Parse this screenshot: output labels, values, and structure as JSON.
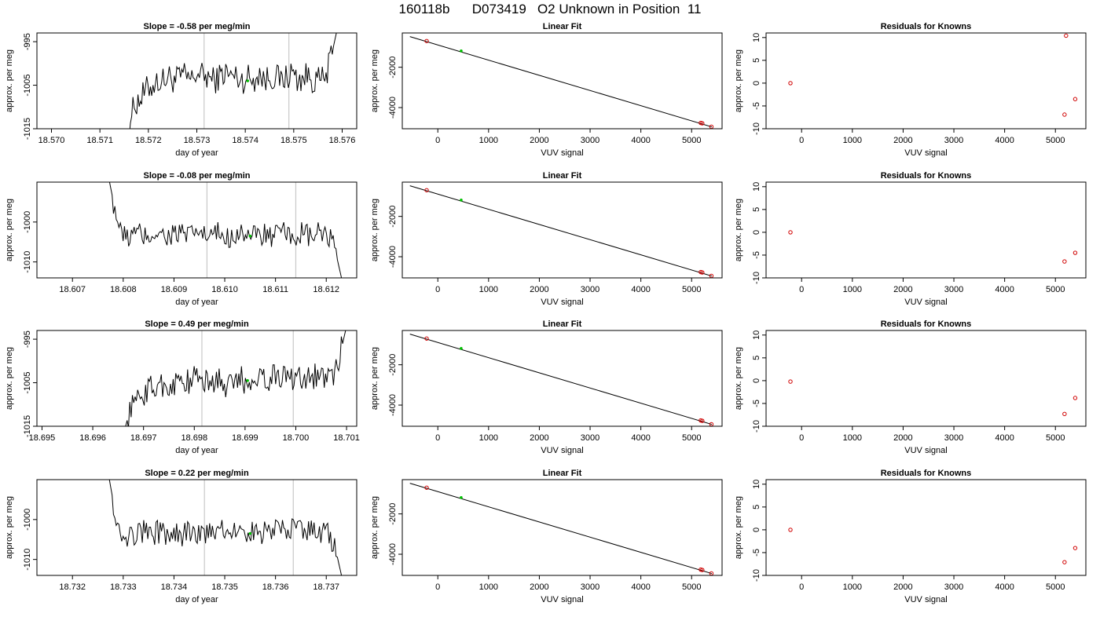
{
  "title": "160118b      D073419   O2 Unknown in Position  11",
  "colors": {
    "trace": "#000000",
    "known_point": "#d00000",
    "fit_point": "#00c000",
    "marker_line": "#c8c8c8"
  },
  "chart_data": [
    {
      "type": "line",
      "title": "Slope =  -0.58  per meg/min",
      "xlabel": "day of year",
      "ylabel": "approx. per meg",
      "xlim": [
        18.5697,
        18.5763
      ],
      "ylim": [
        -1015,
        -993
      ],
      "xticks": [
        "18.570",
        "18.571",
        "18.572",
        "18.573",
        "18.574",
        "18.575",
        "18.576"
      ],
      "xtick_values": [
        18.57,
        18.571,
        18.572,
        18.573,
        18.574,
        18.575,
        18.576
      ],
      "yticks": [
        "-1015",
        "-1005",
        "-995"
      ],
      "ytick_values": [
        -1015,
        -1005,
        -995
      ],
      "start": 18.5715,
      "end": 18.5759,
      "levels": [
        -1019,
        -1013,
        -1009,
        -1008,
        -1006,
        -1005,
        -1004,
        -1004,
        -1003,
        -1004,
        -1003,
        -1003,
        -1004,
        -1002,
        -1003,
        -1003,
        -1004,
        -1003,
        -1002,
        -1003,
        -1003,
        -1004,
        -1003,
        -1004,
        -1002,
        -1004,
        -1003,
        -1003,
        -1004,
        -1003,
        -1002,
        -1004,
        -1003,
        -1003,
        -1004,
        -1004,
        -1003,
        -998,
        -992
      ],
      "amplitude": 3.2,
      "vlines": [
        18.57315,
        18.5749
      ],
      "highlight": {
        "x": 18.57405,
        "y": -1004
      }
    },
    {
      "type": "scatter",
      "title": "Linear Fit",
      "xlabel": "VUV signal",
      "ylabel": "approx. per meg",
      "xlim": [
        -700,
        5600
      ],
      "ylim": [
        -5050,
        -300
      ],
      "xticks": [
        "0",
        "1000",
        "2000",
        "3000",
        "4000",
        "5000"
      ],
      "xtick_values": [
        0,
        1000,
        2000,
        3000,
        4000,
        5000
      ],
      "yticks": [
        "-4000",
        "-2000"
      ],
      "ytick_values": [
        -4000,
        -2000
      ],
      "fit_line": {
        "x": [
          -550,
          5400
        ],
        "y": [
          -480,
          -4960
        ]
      },
      "knowns": [
        {
          "x": -220,
          "y": -700
        },
        {
          "x": 5180,
          "y": -4760
        },
        {
          "x": 5210,
          "y": -4780
        },
        {
          "x": 5390,
          "y": -4950
        }
      ],
      "unknown": {
        "x": 460,
        "y": -1190
      }
    },
    {
      "type": "scatter",
      "title": "Residuals for Knowns",
      "xlabel": "VUV signal",
      "ylabel": "approx. per meg",
      "xlim": [
        -700,
        5600
      ],
      "ylim": [
        -10,
        11
      ],
      "xticks": [
        "0",
        "1000",
        "2000",
        "3000",
        "4000",
        "5000"
      ],
      "xtick_values": [
        0,
        1000,
        2000,
        3000,
        4000,
        5000
      ],
      "yticks": [
        "-10",
        "-5",
        "0",
        "5",
        "10"
      ],
      "ytick_values": [
        -10,
        -5,
        0,
        5,
        10
      ],
      "knowns": [
        {
          "x": -220,
          "y": 0
        },
        {
          "x": 5180,
          "y": -6.9
        },
        {
          "x": 5210,
          "y": 10.4
        },
        {
          "x": 5390,
          "y": -3.5
        }
      ]
    },
    {
      "type": "line",
      "title": "Slope =  -0.08  per meg/min",
      "xlabel": "day of year",
      "ylabel": "approx. per meg",
      "xlim": [
        18.6063,
        18.6126
      ],
      "ylim": [
        -1014,
        -990
      ],
      "xticks": [
        "18.607",
        "18.608",
        "18.609",
        "18.610",
        "18.611",
        "18.612"
      ],
      "xtick_values": [
        18.607,
        18.608,
        18.609,
        18.61,
        18.611,
        18.612
      ],
      "yticks": [
        "-1010",
        "-1000"
      ],
      "ytick_values": [
        -1010,
        -1000
      ],
      "start": 18.6077,
      "end": 18.6123,
      "levels": [
        -988,
        -996,
        -1003,
        -1004,
        -1003,
        -1003,
        -1004,
        -1003,
        -1002,
        -1004,
        -1003,
        -1003,
        -1003,
        -1004,
        -1002,
        -1003,
        -1004,
        -1003,
        -1003,
        -1004,
        -1003,
        -1002,
        -1003,
        -1004,
        -1003,
        -1003,
        -1004,
        -1003,
        -1003,
        -1004,
        -1003,
        -1003,
        -1004,
        -1003,
        -1003,
        -1004,
        -1007,
        -1014
      ],
      "amplitude": 3.0,
      "vlines": [
        18.60965,
        18.6114
      ],
      "highlight": {
        "x": 18.6105,
        "y": -1003.5
      }
    },
    {
      "type": "scatter",
      "title": "Linear Fit",
      "xlabel": "VUV signal",
      "ylabel": "approx. per meg",
      "xlim": [
        -700,
        5600
      ],
      "ylim": [
        -5050,
        -300
      ],
      "xticks": [
        "0",
        "1000",
        "2000",
        "3000",
        "4000",
        "5000"
      ],
      "xtick_values": [
        0,
        1000,
        2000,
        3000,
        4000,
        5000
      ],
      "yticks": [
        "-4000",
        "-2000"
      ],
      "ytick_values": [
        -4000,
        -2000
      ],
      "fit_line": {
        "x": [
          -550,
          5400
        ],
        "y": [
          -480,
          -4960
        ]
      },
      "knowns": [
        {
          "x": -220,
          "y": -700
        },
        {
          "x": 5180,
          "y": -4760
        },
        {
          "x": 5210,
          "y": -4780
        },
        {
          "x": 5390,
          "y": -4950
        }
      ],
      "unknown": {
        "x": 460,
        "y": -1190
      }
    },
    {
      "type": "scatter",
      "title": "Residuals for Knowns",
      "xlabel": "VUV signal",
      "ylabel": "approx. per meg",
      "xlim": [
        -700,
        5600
      ],
      "ylim": [
        -10,
        11
      ],
      "xticks": [
        "0",
        "1000",
        "2000",
        "3000",
        "4000",
        "5000"
      ],
      "xtick_values": [
        0,
        1000,
        2000,
        3000,
        4000,
        5000
      ],
      "yticks": [
        "-10",
        "-5",
        "0",
        "5",
        "10"
      ],
      "ytick_values": [
        -10,
        -5,
        0,
        5,
        10
      ],
      "knowns": [
        {
          "x": -220,
          "y": 0
        },
        {
          "x": 5180,
          "y": -6.4
        },
        {
          "x": 5390,
          "y": -4.5
        }
      ]
    },
    {
      "type": "line",
      "title": "Slope =  0.49  per meg/min",
      "xlabel": "day of year",
      "ylabel": "approx. per meg",
      "xlim": [
        18.6949,
        18.7012
      ],
      "ylim": [
        -1015,
        -993
      ],
      "xticks": [
        "18.695",
        "18.696",
        "18.697",
        "18.698",
        "18.699",
        "18.700",
        "18.701"
      ],
      "xtick_values": [
        18.695,
        18.696,
        18.697,
        18.698,
        18.699,
        18.7,
        18.701
      ],
      "yticks": [
        "-1015",
        "-1005",
        "-995"
      ],
      "ytick_values": [
        -1015,
        -1005,
        -995
      ],
      "start": 18.6966,
      "end": 18.701,
      "levels": [
        -1017,
        -1012,
        -1009,
        -1008,
        -1007,
        -1006,
        -1006,
        -1005,
        -1006,
        -1005,
        -1004,
        -1005,
        -1004,
        -1003,
        -1005,
        -1005,
        -1004,
        -1005,
        -1006,
        -1005,
        -1004,
        -1005,
        -1004,
        -1003,
        -1004,
        -1004,
        -1003,
        -1004,
        -1003,
        -1004,
        -1003,
        -1004,
        -1004,
        -1003,
        -1004,
        -1004,
        -1003,
        -998,
        -992
      ],
      "amplitude": 3.0,
      "vlines": [
        18.69815,
        18.69995
      ],
      "highlight": {
        "x": 18.69905,
        "y": -1004.5
      }
    },
    {
      "type": "scatter",
      "title": "Linear Fit",
      "xlabel": "VUV signal",
      "ylabel": "approx. per meg",
      "xlim": [
        -700,
        5600
      ],
      "ylim": [
        -5050,
        -300
      ],
      "xticks": [
        "0",
        "1000",
        "2000",
        "3000",
        "4000",
        "5000"
      ],
      "xtick_values": [
        0,
        1000,
        2000,
        3000,
        4000,
        5000
      ],
      "yticks": [
        "-4000",
        "-2000"
      ],
      "ytick_values": [
        -4000,
        -2000
      ],
      "fit_line": {
        "x": [
          -550,
          5400
        ],
        "y": [
          -480,
          -4960
        ]
      },
      "knowns": [
        {
          "x": -220,
          "y": -700
        },
        {
          "x": 5180,
          "y": -4760
        },
        {
          "x": 5210,
          "y": -4780
        },
        {
          "x": 5390,
          "y": -4950
        }
      ],
      "unknown": {
        "x": 460,
        "y": -1190
      }
    },
    {
      "type": "scatter",
      "title": "Residuals for Knowns",
      "xlabel": "VUV signal",
      "ylabel": "approx. per meg",
      "xlim": [
        -700,
        5600
      ],
      "ylim": [
        -10,
        11
      ],
      "xticks": [
        "0",
        "1000",
        "2000",
        "3000",
        "4000",
        "5000"
      ],
      "xtick_values": [
        0,
        1000,
        2000,
        3000,
        4000,
        5000
      ],
      "yticks": [
        "-10",
        "-5",
        "0",
        "5",
        "10"
      ],
      "ytick_values": [
        -10,
        -5,
        0,
        5,
        10
      ],
      "knowns": [
        {
          "x": -220,
          "y": -0.2
        },
        {
          "x": 5180,
          "y": -7.3
        },
        {
          "x": 5390,
          "y": -3.8
        }
      ]
    },
    {
      "type": "line",
      "title": "Slope =  0.22  per meg/min",
      "xlabel": "day of year",
      "ylabel": "approx. per meg",
      "xlim": [
        18.7313,
        18.7376
      ],
      "ylim": [
        -1014,
        -990
      ],
      "xticks": [
        "18.732",
        "18.733",
        "18.734",
        "18.735",
        "18.736",
        "18.737"
      ],
      "xtick_values": [
        18.732,
        18.733,
        18.734,
        18.735,
        18.736,
        18.737
      ],
      "yticks": [
        "-1010",
        "-1000"
      ],
      "ytick_values": [
        -1010,
        -1000
      ],
      "start": 18.7327,
      "end": 18.7373,
      "levels": [
        -988,
        -997,
        -1003,
        -1004,
        -1004,
        -1003,
        -1003,
        -1004,
        -1003,
        -1004,
        -1004,
        -1003,
        -1004,
        -1003,
        -1003,
        -1004,
        -1004,
        -1003,
        -1002,
        -1003,
        -1003,
        -1002,
        -1003,
        -1003,
        -1004,
        -1003,
        -1003,
        -1002,
        -1003,
        -1002,
        -1003,
        -1003,
        -1002,
        -1003,
        -1003,
        -1004,
        -1007,
        -1014
      ],
      "amplitude": 3.0,
      "vlines": [
        18.7346,
        18.73635
      ],
      "highlight": {
        "x": 18.7355,
        "y": -1003.5
      }
    },
    {
      "type": "scatter",
      "title": "Linear Fit",
      "xlabel": "VUV signal",
      "ylabel": "approx. per meg",
      "xlim": [
        -700,
        5600
      ],
      "ylim": [
        -5050,
        -300
      ],
      "xticks": [
        "0",
        "1000",
        "2000",
        "3000",
        "4000",
        "5000"
      ],
      "xtick_values": [
        0,
        1000,
        2000,
        3000,
        4000,
        5000
      ],
      "yticks": [
        "-4000",
        "-2000"
      ],
      "ytick_values": [
        -4000,
        -2000
      ],
      "fit_line": {
        "x": [
          -550,
          5400
        ],
        "y": [
          -480,
          -4960
        ]
      },
      "knowns": [
        {
          "x": -220,
          "y": -700
        },
        {
          "x": 5180,
          "y": -4760
        },
        {
          "x": 5210,
          "y": -4780
        },
        {
          "x": 5390,
          "y": -4950
        }
      ],
      "unknown": {
        "x": 460,
        "y": -1190
      }
    },
    {
      "type": "scatter",
      "title": "Residuals for Knowns",
      "xlabel": "VUV signal",
      "ylabel": "approx. per meg",
      "xlim": [
        -700,
        5600
      ],
      "ylim": [
        -10,
        11
      ],
      "xticks": [
        "0",
        "1000",
        "2000",
        "3000",
        "4000",
        "5000"
      ],
      "xtick_values": [
        0,
        1000,
        2000,
        3000,
        4000,
        5000
      ],
      "yticks": [
        "-10",
        "-5",
        "0",
        "5",
        "10"
      ],
      "ytick_values": [
        -10,
        -5,
        0,
        5,
        10
      ],
      "knowns": [
        {
          "x": -220,
          "y": 0
        },
        {
          "x": 5180,
          "y": -7.1
        },
        {
          "x": 5390,
          "y": -4.0
        }
      ]
    }
  ]
}
